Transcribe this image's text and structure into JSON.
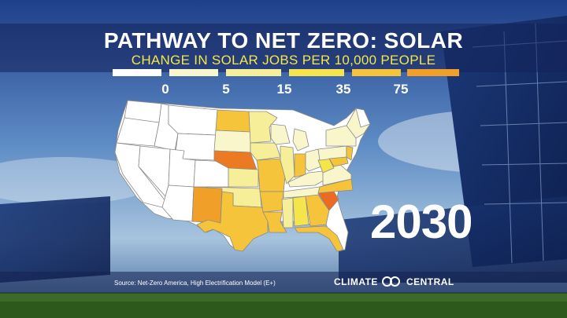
{
  "title": "PATHWAY TO NET ZERO: SOLAR",
  "subtitle": "CHANGE IN SOLAR JOBS PER 10,000 PEOPLE",
  "legend": {
    "colors": [
      "#ffffff",
      "#faf6cc",
      "#f7ee9a",
      "#f5e44c",
      "#f5c43a",
      "#f0a028"
    ],
    "tick_labels": [
      "0",
      "5",
      "15",
      "35",
      "75"
    ]
  },
  "map": {
    "state_colors": {
      "white": "#ffffff",
      "pale": "#faf6cc",
      "light": "#f7ee9a",
      "yellow": "#f5e44c",
      "gold": "#f5c43a",
      "orange": "#f0a028",
      "dark_orange": "#ec7a22"
    }
  },
  "year": "2030",
  "source": "Source: Net-Zero America, High Electrification Model (E+)",
  "brand": {
    "left": "CLIMATE",
    "right": "CENTRAL"
  }
}
